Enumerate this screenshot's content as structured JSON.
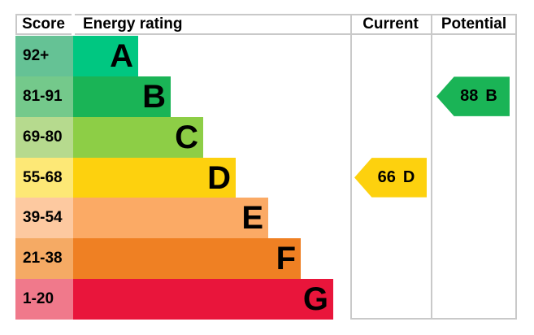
{
  "header": {
    "score": "Score",
    "energy_rating": "Energy rating",
    "current": "Current",
    "potential": "Potential"
  },
  "chart_data": {
    "type": "bar",
    "subtype": "epc-energy-rating-chart",
    "columns": [
      "Score",
      "Energy rating",
      "Current",
      "Potential"
    ],
    "bands": [
      {
        "score_range": "92+",
        "letter": "A",
        "color": "#00c781",
        "tint_color": "#65c295"
      },
      {
        "score_range": "81-91",
        "letter": "B",
        "color": "#1ab456",
        "tint_color": "#74c98b"
      },
      {
        "score_range": "69-80",
        "letter": "C",
        "color": "#8dce46",
        "tint_color": "#b6da8e"
      },
      {
        "score_range": "55-68",
        "letter": "D",
        "color": "#fdd10e",
        "tint_color": "#fde876"
      },
      {
        "score_range": "39-54",
        "letter": "E",
        "color": "#fbaa65",
        "tint_color": "#fdc9a0"
      },
      {
        "score_range": "21-38",
        "letter": "F",
        "color": "#ef8023",
        "tint_color": "#f5aa64"
      },
      {
        "score_range": "1-20",
        "letter": "G",
        "color": "#e9153b",
        "tint_color": "#f0798b"
      }
    ],
    "current": {
      "value": "66",
      "letter": "D",
      "band_row": 3,
      "color": "#fdd10e"
    },
    "potential": {
      "value": "88",
      "letter": "B",
      "band_row": 1,
      "color": "#1ab456"
    },
    "border_color": "#c9c9c9",
    "legend_position": "none",
    "grid": false
  }
}
